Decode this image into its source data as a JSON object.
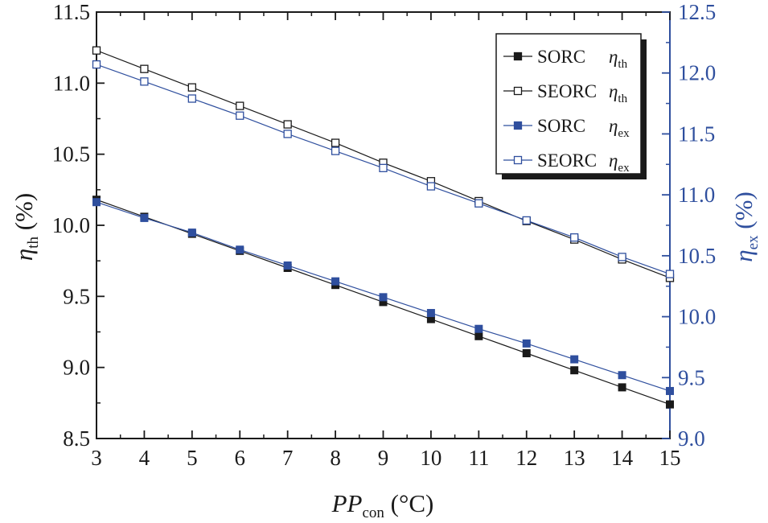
{
  "chart_data": {
    "type": "line",
    "xlabel": {
      "var": "PP",
      "sub": "con",
      "unit": " (°C)"
    },
    "ylabel_left": {
      "var": "η",
      "sub": "th",
      "unit": " (%)"
    },
    "ylabel_right": {
      "var": "η",
      "sub": "ex",
      "unit": " (%)"
    },
    "xlim": [
      3,
      15
    ],
    "ylim_left": [
      8.5,
      11.5
    ],
    "ylim_right": [
      9.0,
      12.5
    ],
    "x_ticks": [
      "3",
      "4",
      "5",
      "6",
      "7",
      "8",
      "9",
      "10",
      "11",
      "12",
      "13",
      "14",
      "15"
    ],
    "y_left_ticks": [
      "8.5",
      "9.0",
      "9.5",
      "10.0",
      "10.5",
      "11.0",
      "11.5"
    ],
    "y_right_ticks": [
      "9.0",
      "9.5",
      "10.0",
      "10.5",
      "11.0",
      "11.5",
      "12.0",
      "12.5"
    ],
    "x": [
      3,
      4,
      5,
      6,
      7,
      8,
      9,
      10,
      11,
      12,
      13,
      14,
      15
    ],
    "series": [
      {
        "name": "SORC",
        "eta": "η",
        "sub": "th",
        "axis": "left",
        "color": "#1a1a1a",
        "marker": "filled-square",
        "values": [
          10.18,
          10.06,
          9.94,
          9.82,
          9.7,
          9.58,
          9.46,
          9.34,
          9.22,
          9.1,
          8.98,
          8.86,
          8.74
        ]
      },
      {
        "name": "SEORC",
        "eta": "η",
        "sub": "th",
        "axis": "left",
        "color": "#1a1a1a",
        "marker": "open-square",
        "values": [
          11.23,
          11.1,
          10.97,
          10.84,
          10.71,
          10.58,
          10.44,
          10.31,
          10.17,
          10.03,
          9.9,
          9.76,
          9.63
        ]
      },
      {
        "name": "SORC",
        "eta": "η",
        "sub": "ex",
        "axis": "right",
        "color": "#2f4f9e",
        "marker": "filled-square",
        "values": [
          10.94,
          10.81,
          10.69,
          10.55,
          10.42,
          10.29,
          10.16,
          10.03,
          9.9,
          9.78,
          9.65,
          9.52,
          9.39
        ]
      },
      {
        "name": "SEORC",
        "eta": "η",
        "sub": "ex",
        "axis": "right",
        "color": "#2f4f9e",
        "marker": "open-square",
        "values": [
          12.07,
          11.93,
          11.79,
          11.65,
          11.5,
          11.36,
          11.22,
          11.07,
          10.93,
          10.79,
          10.65,
          10.49,
          10.35
        ]
      }
    ],
    "legend_position": "top-right"
  }
}
